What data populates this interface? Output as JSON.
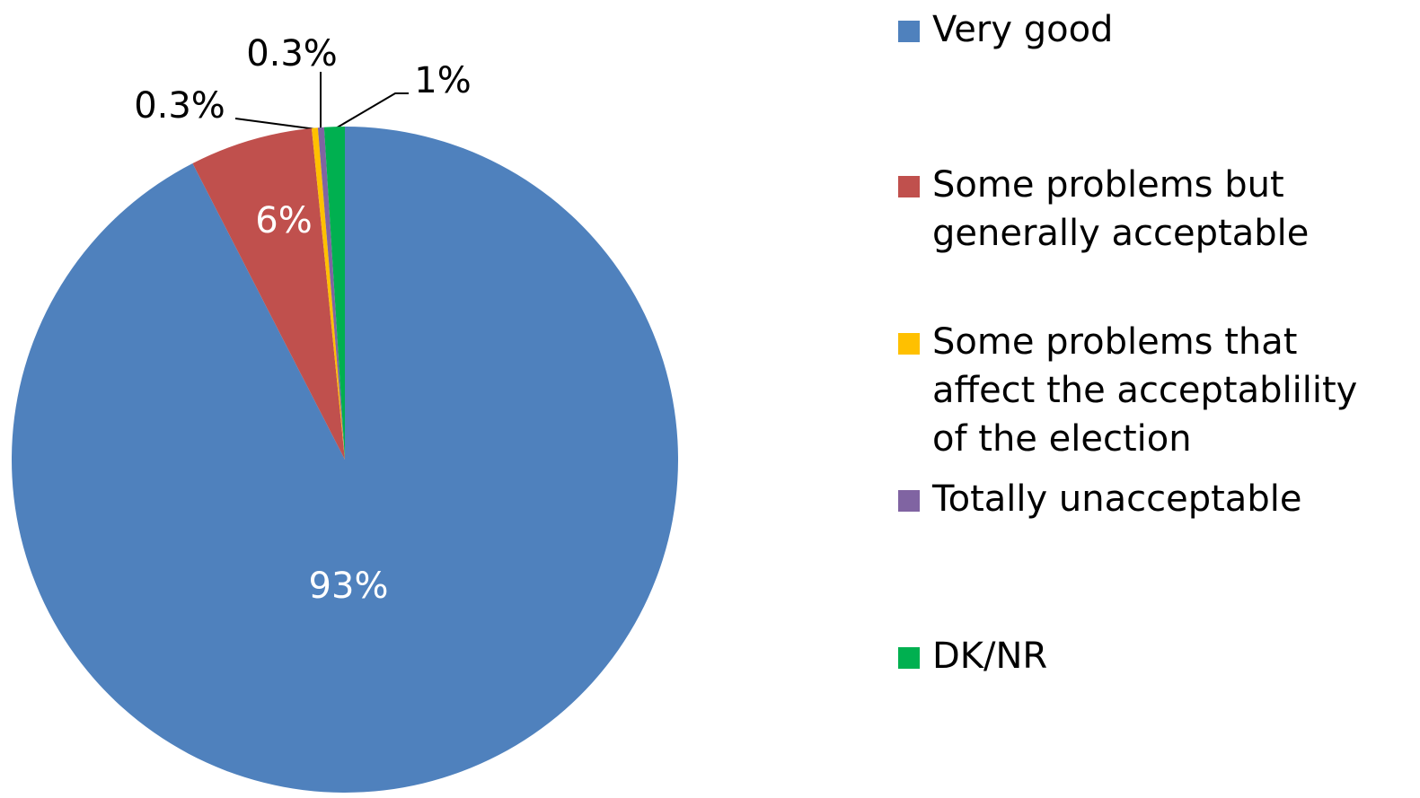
{
  "chart_data": {
    "type": "pie",
    "categories": [
      "Very good",
      "Some problems but generally acceptable",
      "Some problems that affect the acceptablility of the election",
      "Totally unacceptable",
      "DK/NR"
    ],
    "values": [
      93,
      6,
      0.3,
      0.3,
      1
    ],
    "value_labels": [
      "93%",
      "6%",
      "0.3%",
      "0.3%",
      "1%"
    ],
    "colors": [
      "#4f81bd",
      "#c0504d",
      "#ffc000",
      "#8064a2",
      "#00b050"
    ]
  }
}
